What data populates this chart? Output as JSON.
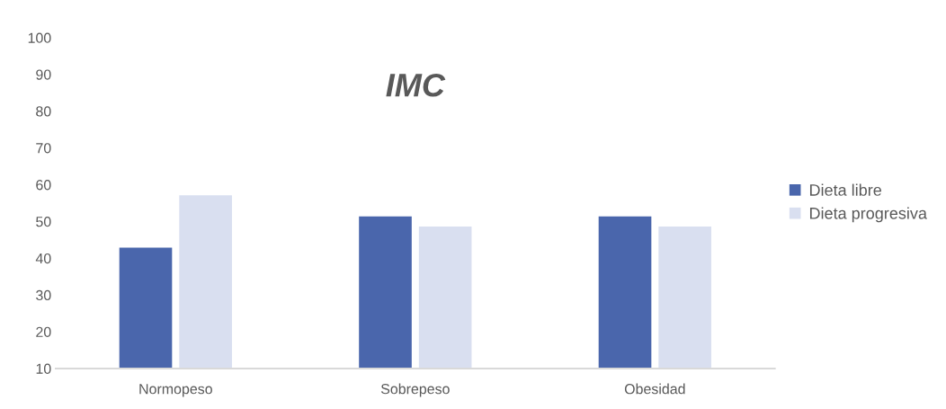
{
  "chart_data": {
    "type": "bar",
    "title": "IMC",
    "categories": [
      "Normopeso",
      "Sobrepeso",
      "Obesidad"
    ],
    "series": [
      {
        "name": "Dieta libre",
        "color": "#4a66ac",
        "values": [
          42.9,
          51.4,
          51.4
        ]
      },
      {
        "name": "Dieta progresiva",
        "color": "#d9dff0",
        "values": [
          57.1,
          48.6,
          48.6
        ]
      }
    ],
    "ylim": [
      10,
      100
    ],
    "yticks": [
      10,
      20,
      30,
      40,
      50,
      60,
      70,
      80,
      90,
      100
    ],
    "grid": false,
    "legend": "right"
  }
}
